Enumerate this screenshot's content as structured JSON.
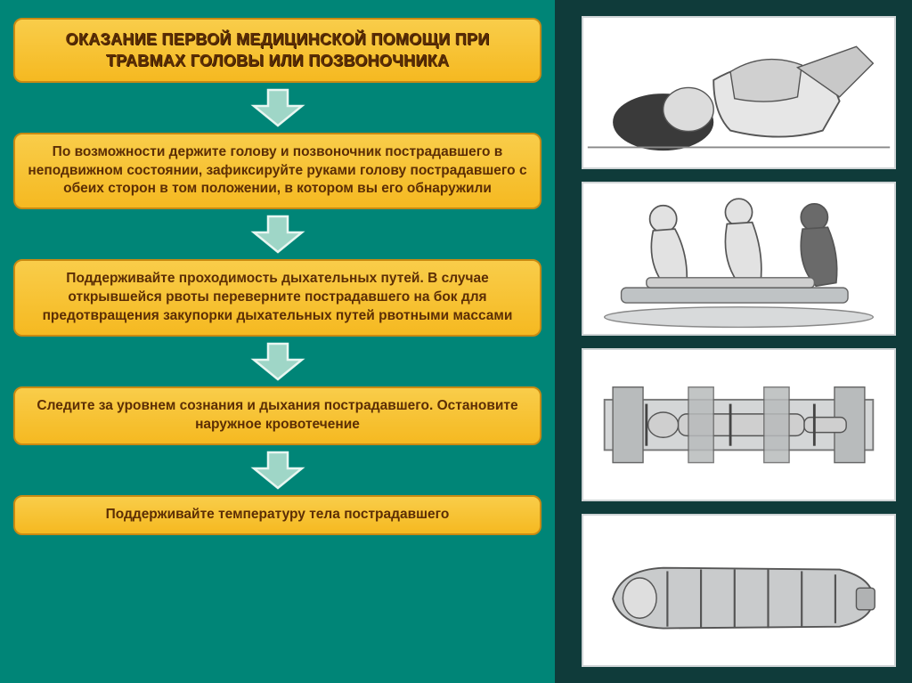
{
  "layout": {
    "left_bg": "#008577",
    "right_bg": "#0f3b3a",
    "box_fill": "#f5b921",
    "box_fill_light": "#f9cd4a",
    "box_border": "#c98a12",
    "text_color": "#5c2e05",
    "title_shadow": "#3a1c03",
    "arrow_fill": "#9fd6c7",
    "arrow_stroke": "#e8f6f1",
    "img_border": "#cfd4d6"
  },
  "title": "ОКАЗАНИЕ  ПЕРВОЙ  МЕДИЦИНСКОЙ ПОМОЩИ ПРИ ТРАВМАХ ГОЛОВЫ ИЛИ ПОЗВОНОЧНИКА",
  "steps": [
    "По возможности держите голову и позвоночник пострадавшего в неподвижном состоянии, зафиксируйте руками голову пострадавшего с обеих сторон в том положении, в котором вы его обнаружили",
    "Поддерживайте проходимость дыхательных путей. В случае открывшейся рвоты переверните пострадавшего на бок для предотвращения закупорки дыхательных путей рвотными массами",
    "Следите за уровнем сознания и дыхания пострадавшего. Остановите наружное кровотечение",
    "Поддерживайте температуру тела пострадавшего"
  ],
  "images": [
    {
      "name": "head-stabilization-illustration",
      "alt": "Руки фиксируют голову лежащего пострадавшего"
    },
    {
      "name": "group-turning-illustration",
      "alt": "Три человека переворачивают пострадавшего на носилки"
    },
    {
      "name": "immobilized-supine-illustration",
      "alt": "Пострадавший лежит с фиксацией на щите"
    },
    {
      "name": "wrapped-victim-illustration",
      "alt": "Пострадавший обёрнут для поддержания температуры"
    }
  ],
  "typography": {
    "title_fontsize": 18,
    "step_fontsize": 15.5,
    "font_weight": "bold"
  },
  "arrow": {
    "width": 62,
    "height": 44
  }
}
